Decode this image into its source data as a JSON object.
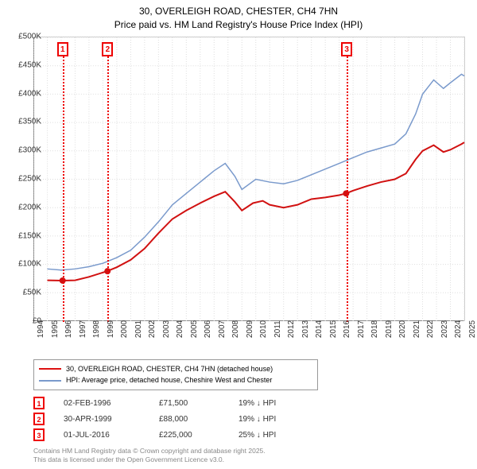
{
  "title_line1": "30, OVERLEIGH ROAD, CHESTER, CH4 7HN",
  "title_line2": "Price paid vs. HM Land Registry's House Price Index (HPI)",
  "chart": {
    "type": "line",
    "x_years": [
      1994,
      1995,
      1996,
      1997,
      1998,
      1999,
      2000,
      2001,
      2002,
      2003,
      2004,
      2005,
      2006,
      2007,
      2008,
      2009,
      2010,
      2011,
      2012,
      2013,
      2014,
      2015,
      2016,
      2017,
      2018,
      2019,
      2020,
      2021,
      2022,
      2023,
      2024,
      2025
    ],
    "ylim": [
      0,
      500000
    ],
    "ytick_step": 50000,
    "ytick_labels": [
      "£0",
      "£50K",
      "£100K",
      "£150K",
      "£200K",
      "£250K",
      "£300K",
      "£350K",
      "£400K",
      "£450K",
      "£500K"
    ],
    "grid_color": "#ddd",
    "background": "#ffffff",
    "axis_color": "#888",
    "title_fontsize": 12,
    "tick_fontsize": 10,
    "series": [
      {
        "name": "price_paid",
        "label": "30, OVERLEIGH ROAD, CHESTER, CH4 7HN (detached house)",
        "color": "#d11111",
        "width": 2,
        "points": [
          [
            1995.0,
            72000
          ],
          [
            1996.1,
            71500
          ],
          [
            1997,
            72000
          ],
          [
            1998,
            78000
          ],
          [
            1999.3,
            88000
          ],
          [
            2000,
            95000
          ],
          [
            2001,
            108000
          ],
          [
            2002,
            128000
          ],
          [
            2003,
            155000
          ],
          [
            2004,
            180000
          ],
          [
            2005,
            195000
          ],
          [
            2006,
            208000
          ],
          [
            2007,
            220000
          ],
          [
            2007.8,
            228000
          ],
          [
            2008.5,
            210000
          ],
          [
            2009,
            195000
          ],
          [
            2009.8,
            208000
          ],
          [
            2010.5,
            212000
          ],
          [
            2011,
            205000
          ],
          [
            2012,
            200000
          ],
          [
            2013,
            205000
          ],
          [
            2014,
            215000
          ],
          [
            2015,
            218000
          ],
          [
            2016,
            222000
          ],
          [
            2016.5,
            225000
          ],
          [
            2017,
            230000
          ],
          [
            2018,
            238000
          ],
          [
            2019,
            245000
          ],
          [
            2020,
            250000
          ],
          [
            2020.8,
            260000
          ],
          [
            2021.5,
            285000
          ],
          [
            2022,
            300000
          ],
          [
            2022.8,
            310000
          ],
          [
            2023.5,
            298000
          ],
          [
            2024,
            302000
          ],
          [
            2024.8,
            312000
          ],
          [
            2025,
            315000
          ]
        ],
        "sale_dots": [
          {
            "x": 1996.1,
            "y": 71500
          },
          {
            "x": 1999.33,
            "y": 88000
          },
          {
            "x": 2016.5,
            "y": 225000
          }
        ]
      },
      {
        "name": "hpi",
        "label": "HPI: Average price, detached house, Cheshire West and Chester",
        "color": "#7a9acc",
        "width": 1.5,
        "points": [
          [
            1995.0,
            92000
          ],
          [
            1996,
            90000
          ],
          [
            1997,
            92000
          ],
          [
            1998,
            96000
          ],
          [
            1999,
            102000
          ],
          [
            2000,
            112000
          ],
          [
            2001,
            125000
          ],
          [
            2002,
            148000
          ],
          [
            2003,
            175000
          ],
          [
            2004,
            205000
          ],
          [
            2005,
            225000
          ],
          [
            2006,
            245000
          ],
          [
            2007,
            265000
          ],
          [
            2007.8,
            278000
          ],
          [
            2008.5,
            255000
          ],
          [
            2009,
            232000
          ],
          [
            2010,
            250000
          ],
          [
            2011,
            245000
          ],
          [
            2012,
            242000
          ],
          [
            2013,
            248000
          ],
          [
            2014,
            258000
          ],
          [
            2015,
            268000
          ],
          [
            2016,
            278000
          ],
          [
            2017,
            288000
          ],
          [
            2018,
            298000
          ],
          [
            2019,
            305000
          ],
          [
            2020,
            312000
          ],
          [
            2020.8,
            330000
          ],
          [
            2021.5,
            365000
          ],
          [
            2022,
            400000
          ],
          [
            2022.8,
            425000
          ],
          [
            2023.5,
            410000
          ],
          [
            2024,
            420000
          ],
          [
            2024.8,
            435000
          ],
          [
            2025,
            432000
          ]
        ]
      }
    ],
    "markers": [
      {
        "num": "1",
        "x_year": 1996.1
      },
      {
        "num": "2",
        "x_year": 1999.33
      },
      {
        "num": "3",
        "x_year": 2016.5
      }
    ]
  },
  "legend": {
    "row1": "30, OVERLEIGH ROAD, CHESTER, CH4 7HN (detached house)",
    "row2": "HPI: Average price, detached house, Cheshire West and Chester"
  },
  "sales": [
    {
      "num": "1",
      "date": "02-FEB-1996",
      "price": "£71,500",
      "pct": "19% ↓ HPI"
    },
    {
      "num": "2",
      "date": "30-APR-1999",
      "price": "£88,000",
      "pct": "19% ↓ HPI"
    },
    {
      "num": "3",
      "date": "01-JUL-2016",
      "price": "£225,000",
      "pct": "25% ↓ HPI"
    }
  ],
  "footnote_line1": "Contains HM Land Registry data © Crown copyright and database right 2025.",
  "footnote_line2": "This data is licensed under the Open Government Licence v3.0."
}
